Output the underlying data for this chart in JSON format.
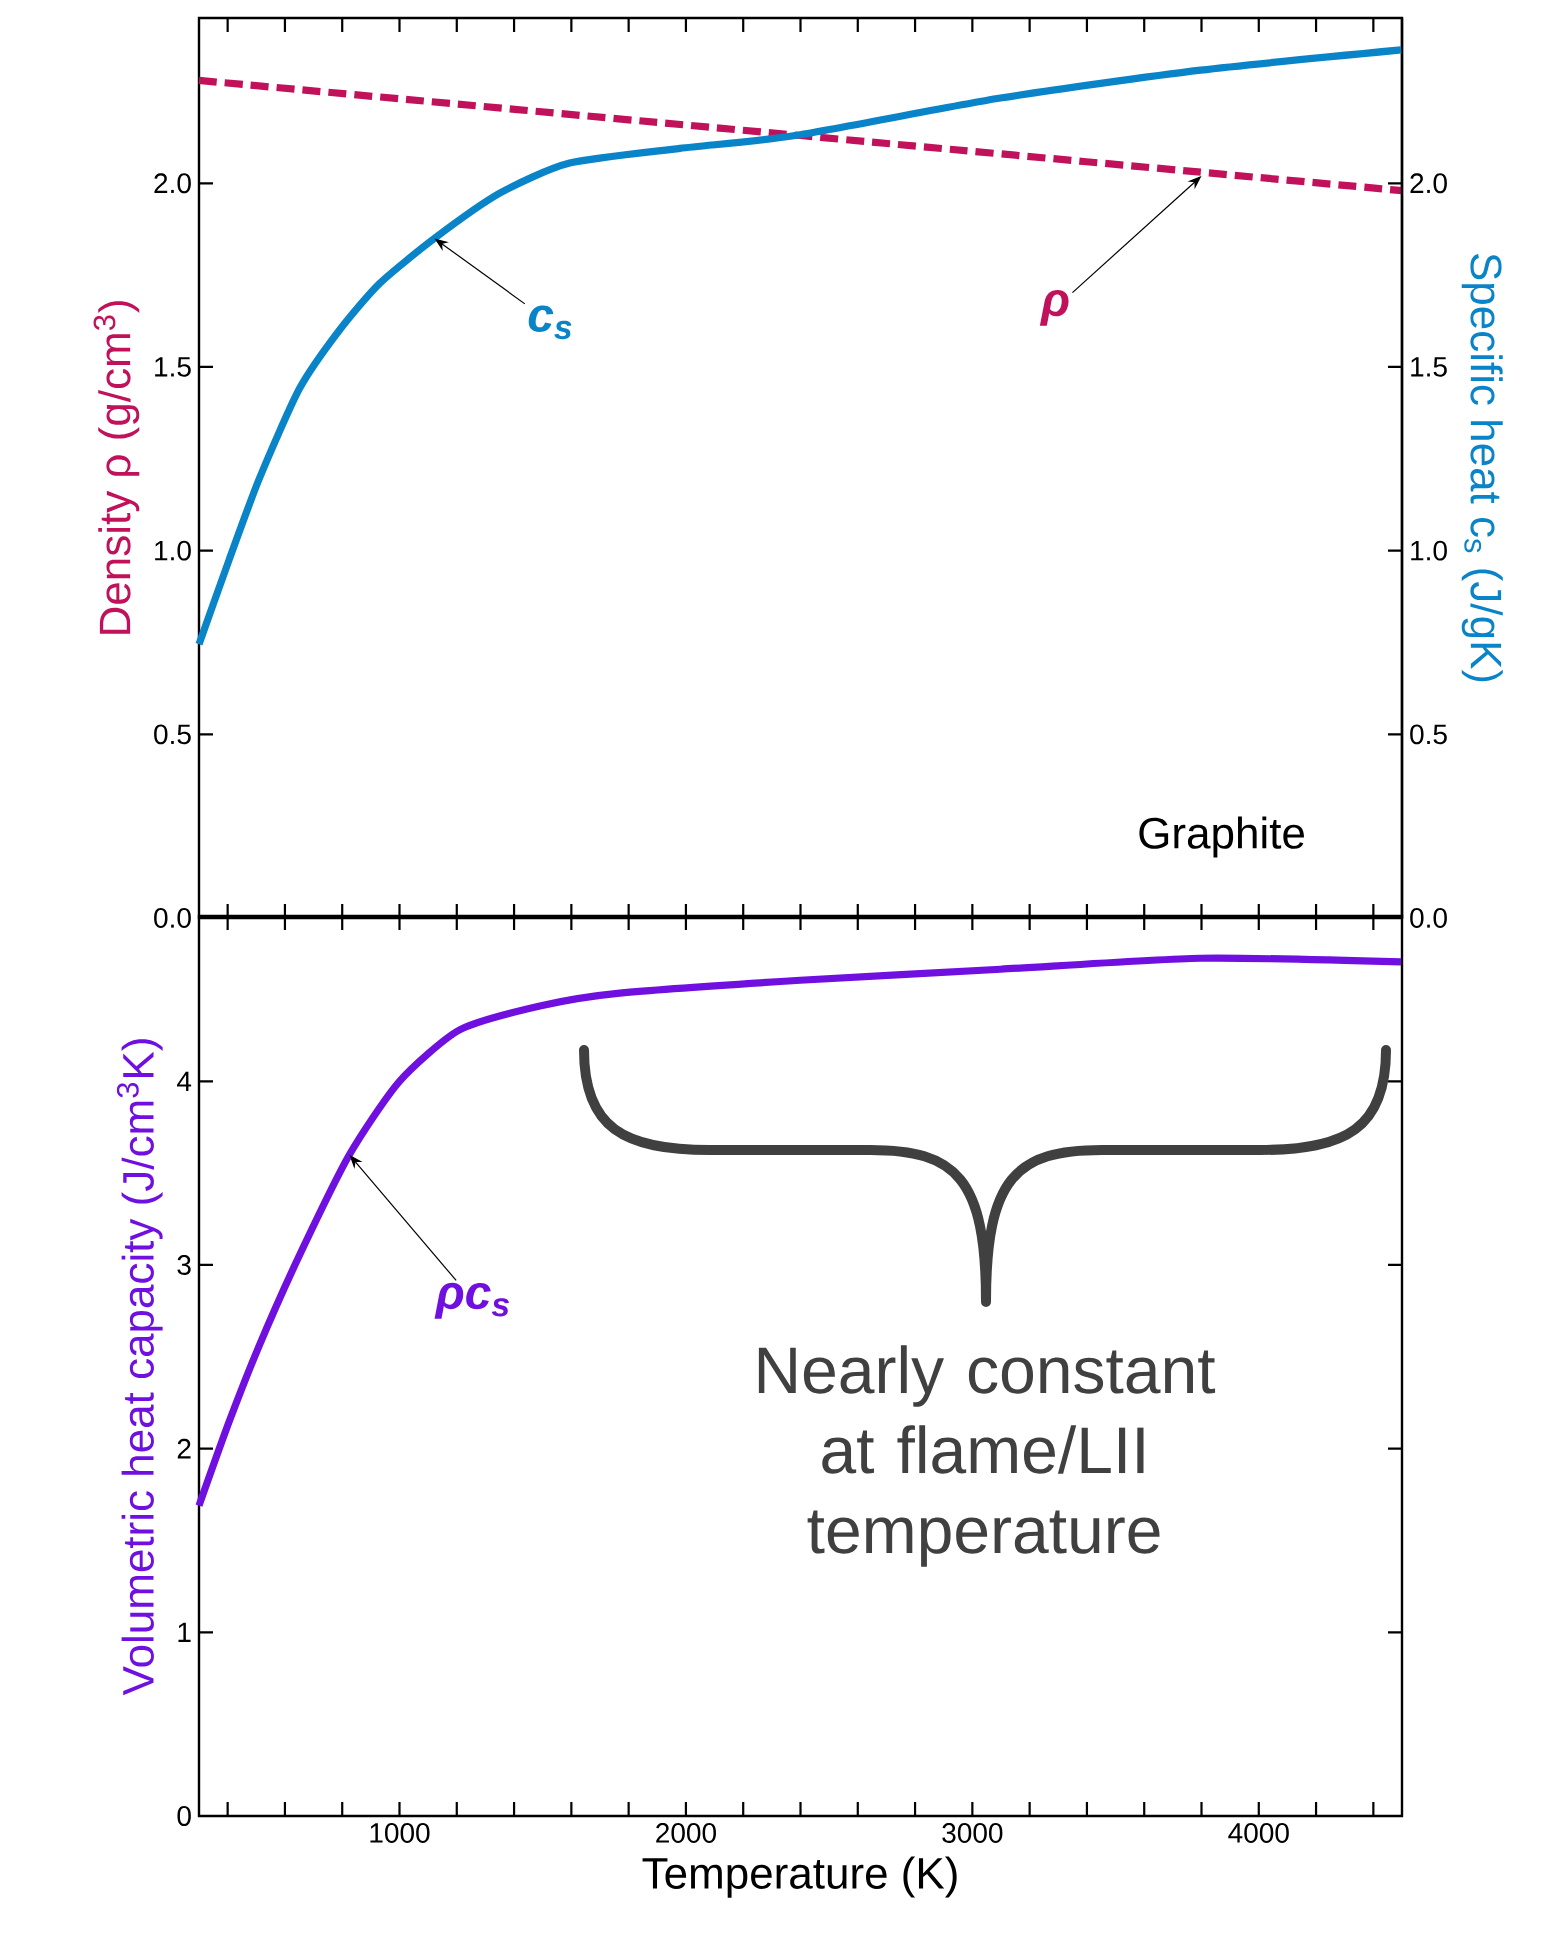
{
  "chart_data": [
    {
      "type": "line",
      "ylabel": "Density ρ (g/cm$^{3}$)",
      "y2label": "Specific heat c$_{s}$ (J/gK)",
      "series": [
        {
          "color": "#c0115a",
          "line_style": "dashed",
          "x": [
            300,
            2400,
            4500
          ],
          "values": [
            2.28,
            2.13,
            1.98
          ]
        },
        {
          "color": "#0a84c8",
          "line_style": "solid",
          "axis": "y2",
          "x": [
            300,
            406,
            510,
            650,
            790,
            930,
            1122,
            1350,
            1594,
            1979,
            2381,
            3098,
            3797,
            4497
          ],
          "values": [
            0.745,
            0.977,
            1.195,
            1.44,
            1.6,
            1.727,
            1.85,
            1.973,
            2.055,
            2.095,
            2.13,
            2.232,
            2.308,
            2.363
          ]
        }
      ],
      "xlim": [
        300,
        4500
      ],
      "ylim": [
        0,
        2.45
      ],
      "y2lim": [
        0,
        2.45
      ],
      "xticks": [
        {
          "value": 400,
          "label": null
        },
        {
          "value": 600,
          "label": null
        },
        {
          "value": 800,
          "label": null
        },
        {
          "value": 1000,
          "label": null
        },
        {
          "value": 1200,
          "label": null
        },
        {
          "value": 1400,
          "label": null
        },
        {
          "value": 1600,
          "label": null
        },
        {
          "value": 1800,
          "label": null
        },
        {
          "value": 2000,
          "label": null
        },
        {
          "value": 2200,
          "label": null
        },
        {
          "value": 2400,
          "label": null
        },
        {
          "value": 2600,
          "label": null
        },
        {
          "value": 2800,
          "label": null
        },
        {
          "value": 3000,
          "label": null
        },
        {
          "value": 3200,
          "label": null
        },
        {
          "value": 3400,
          "label": null
        },
        {
          "value": 3600,
          "label": null
        },
        {
          "value": 3800,
          "label": null
        },
        {
          "value": 4000,
          "label": null
        },
        {
          "value": 4200,
          "label": null
        },
        {
          "value": 4400,
          "label": null
        }
      ],
      "yticks": [
        {
          "value": 0,
          "label": "0.0"
        },
        0.5,
        {
          "value": 1,
          "label": "1.0"
        },
        1.5,
        {
          "value": 2,
          "label": "2.0"
        }
      ],
      "y2ticks": [
        {
          "value": 0,
          "label": "0.0"
        },
        0.5,
        {
          "value": 1,
          "label": "1.0"
        },
        1.5,
        {
          "value": 2,
          "label": "2.0"
        }
      ],
      "tick_labels": "y",
      "annotations": [
        {
          "text": "ρ",
          "x": 3800,
          "y": 2.02
        },
        {
          "text": "c$_{s}$",
          "x": 1122,
          "y": 1.85
        },
        "Graphite"
      ]
    },
    {
      "type": "line",
      "xlabel": "Temperature (K)",
      "ylabel": "Volumetric heat capacity (J/cm$^{3}$K)",
      "series": [
        {
          "color": "#7010e0",
          "line_style": "solid",
          "x": [
            300,
            406,
            510,
            650,
            825,
            1000,
            1210,
            1490,
            1769,
            2399,
            3098,
            3797,
            4497
          ],
          "values": [
            1.69,
            2.15,
            2.56,
            3.05,
            3.6,
            4.0,
            4.28,
            4.41,
            4.48,
            4.55,
            4.61,
            4.67,
            4.65
          ]
        }
      ],
      "xlim": [
        300,
        4500
      ],
      "ylim": [
        0,
        4.9
      ],
      "xticks": [
        {
          "value": 400,
          "label": null
        },
        {
          "value": 600,
          "label": null
        },
        {
          "value": 800,
          "label": null
        },
        1000,
        {
          "value": 1200,
          "label": null
        },
        {
          "value": 1400,
          "label": null
        },
        {
          "value": 1600,
          "label": null
        },
        {
          "value": 1800,
          "label": null
        },
        2000,
        {
          "value": 2200,
          "label": null
        },
        {
          "value": 2400,
          "label": null
        },
        {
          "value": 2600,
          "label": null
        },
        {
          "value": 2800,
          "label": null
        },
        3000,
        {
          "value": 3200,
          "label": null
        },
        {
          "value": 3400,
          "label": null
        },
        {
          "value": 3600,
          "label": null
        },
        {
          "value": 3800,
          "label": null
        },
        4000,
        {
          "value": 4200,
          "label": null
        },
        {
          "value": 4400,
          "label": null
        }
      ],
      "yticks": [
        0,
        1,
        2,
        3,
        4
      ],
      "annotations": [
        {
          "text": "ρc$_{s}$",
          "x": 825,
          "y": 3.6
        },
        "Nearly constant at flame/LII temperature"
      ]
    }
  ]
}
